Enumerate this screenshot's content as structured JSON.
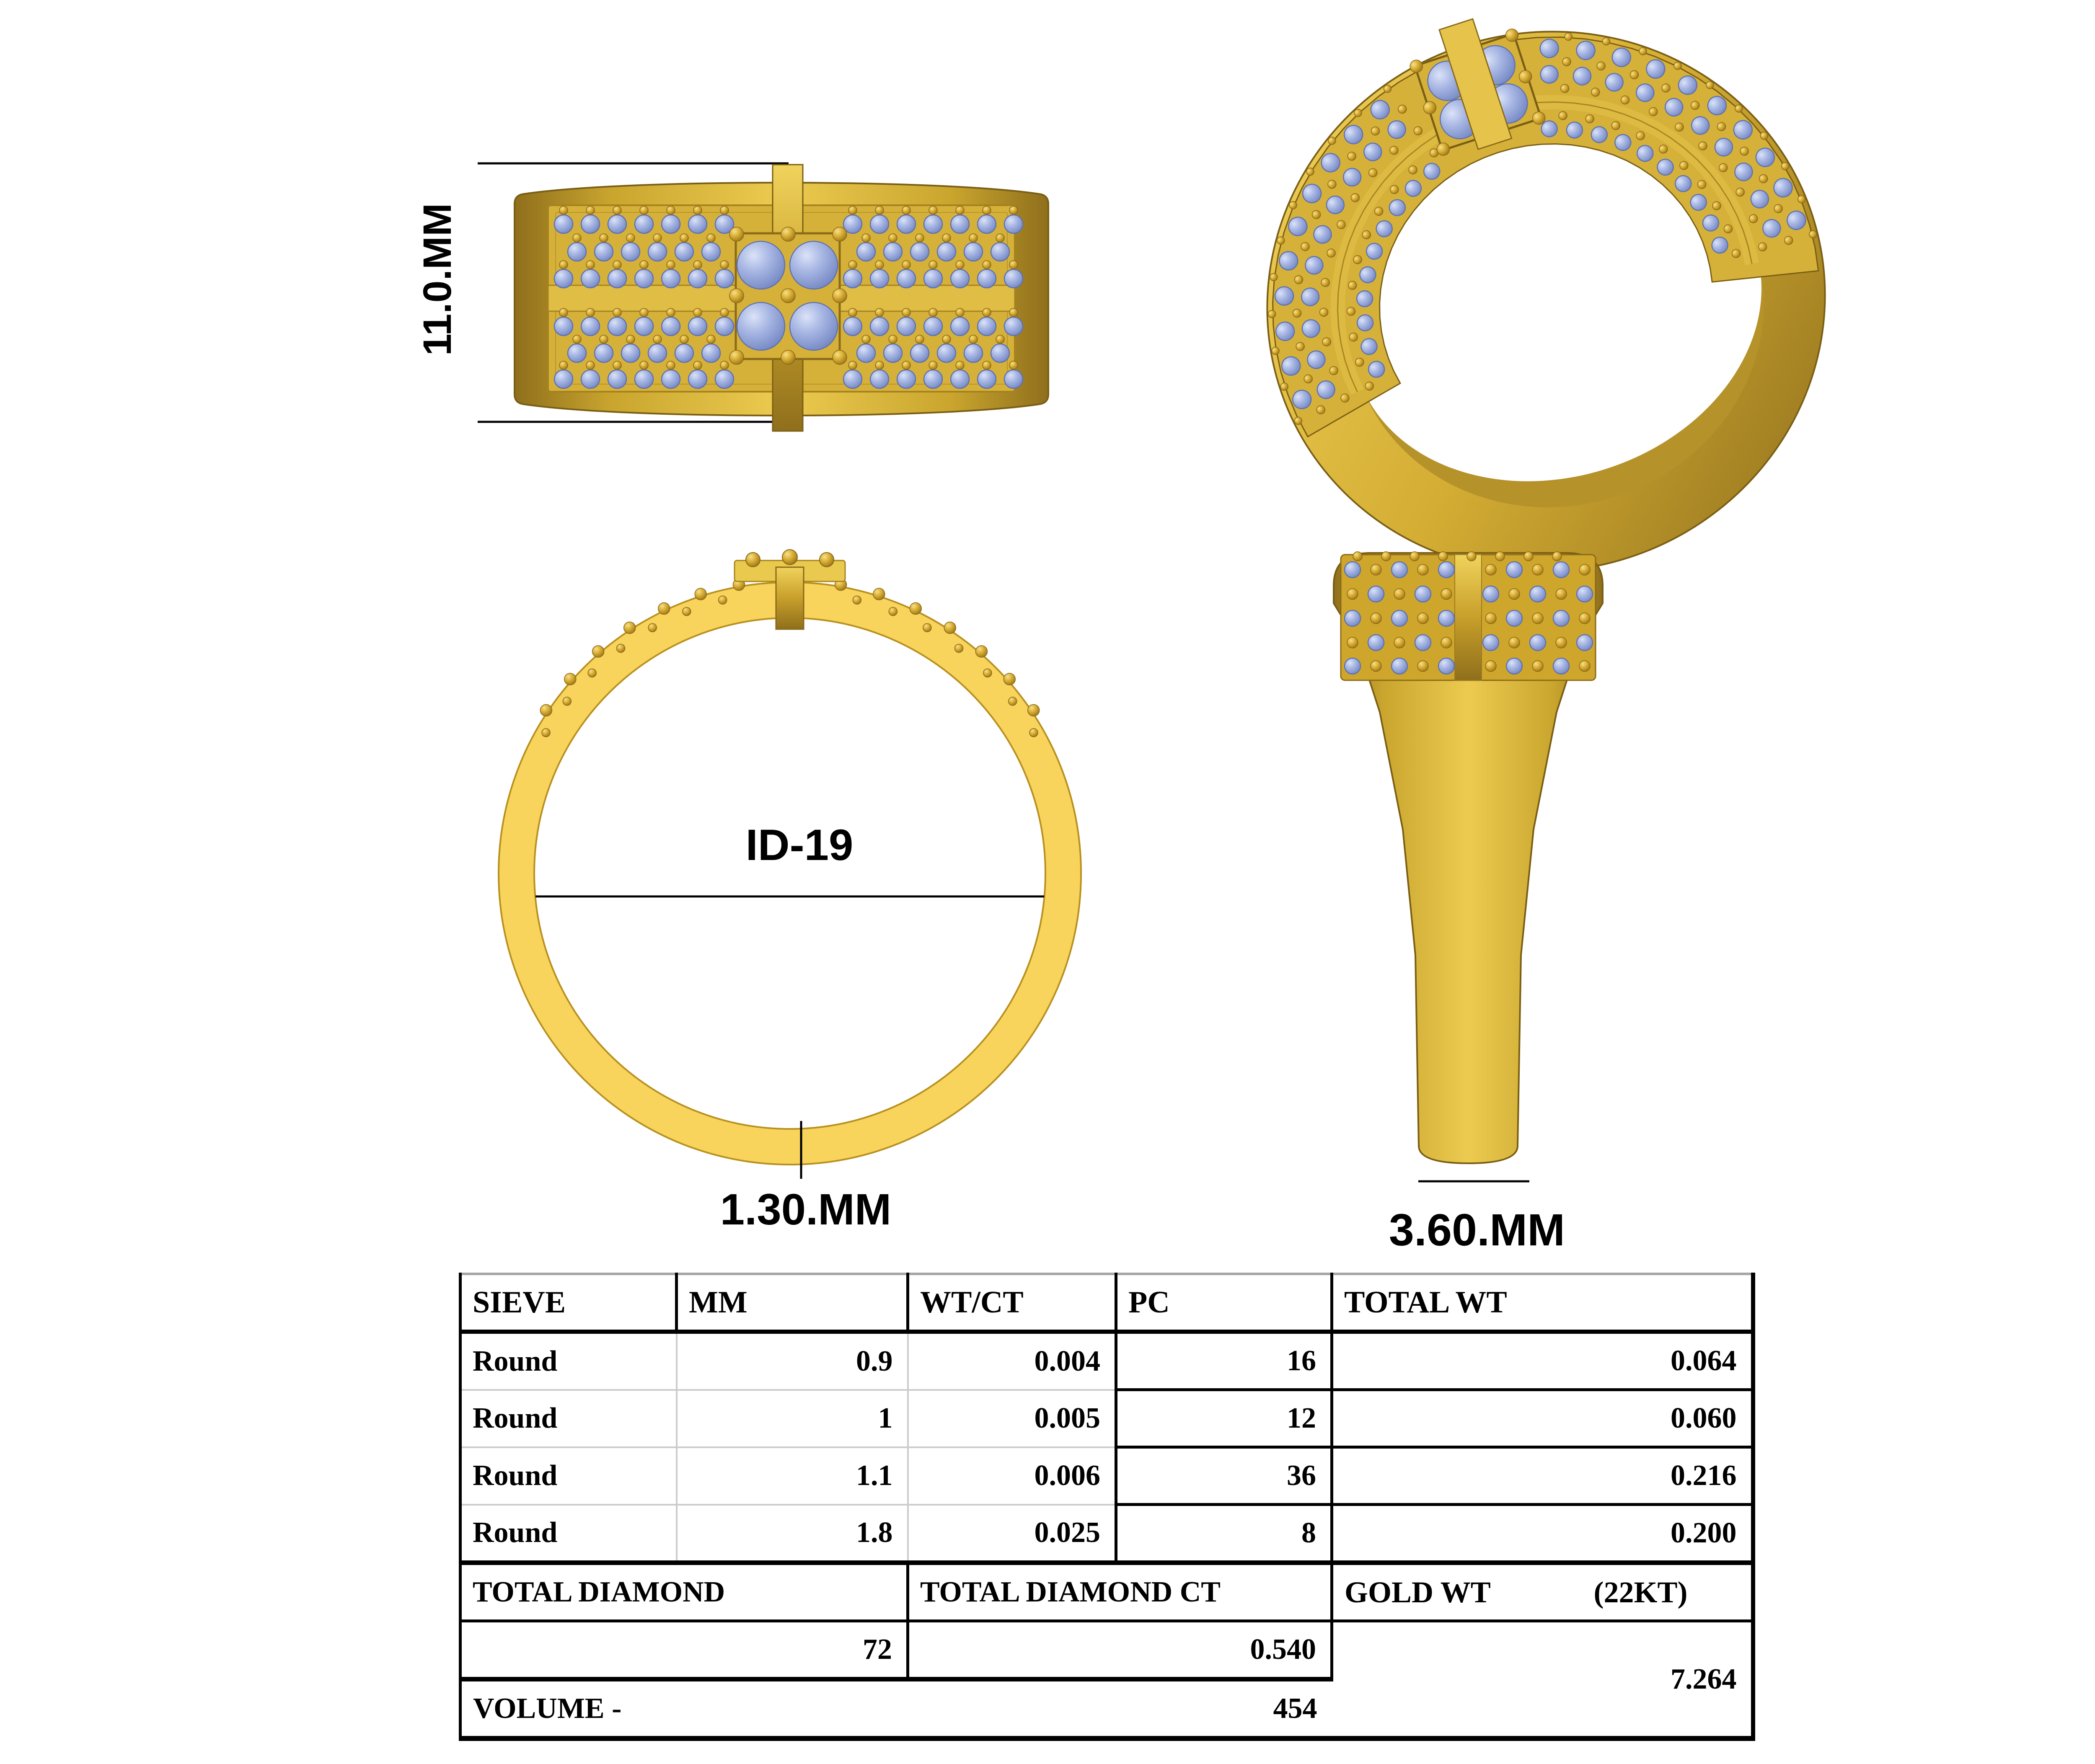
{
  "dimensions": {
    "band_height": "11.0.MM",
    "inner_diameter": "ID-19",
    "band_thickness": "1.30.MM",
    "shank_width": "3.60.MM"
  },
  "table": {
    "headers": [
      "SIEVE",
      "MM",
      "WT/CT",
      "PC",
      "TOTAL WT"
    ],
    "rows": [
      {
        "sieve": "Round",
        "mm": "0.9",
        "wt_ct": "0.004",
        "pc": "16",
        "total_wt": "0.064"
      },
      {
        "sieve": "Round",
        "mm": "1",
        "wt_ct": "0.005",
        "pc": "12",
        "total_wt": "0.060"
      },
      {
        "sieve": "Round",
        "mm": "1.1",
        "wt_ct": "0.006",
        "pc": "36",
        "total_wt": "0.216"
      },
      {
        "sieve": "Round",
        "mm": "1.8",
        "wt_ct": "0.025",
        "pc": "8",
        "total_wt": "0.200"
      }
    ],
    "summary": {
      "total_diamond_label": "TOTAL DIAMOND",
      "total_diamond_value": "72",
      "total_diamond_ct_label": "TOTAL DIAMOND CT",
      "total_diamond_ct_value": "0.540",
      "gold_wt_label": "GOLD WT",
      "gold_wt_karat": "(22KT)",
      "gold_wt_value": "7.264",
      "volume_label": "VOLUME -",
      "volume_value": "454"
    }
  },
  "colors": {
    "gold": "#d6b139",
    "gold_light": "#f2d35c",
    "gold_dark": "#8f6f1c",
    "stone_blue": "#a7b6e3",
    "stone_blue_light": "#dbe3f7"
  }
}
